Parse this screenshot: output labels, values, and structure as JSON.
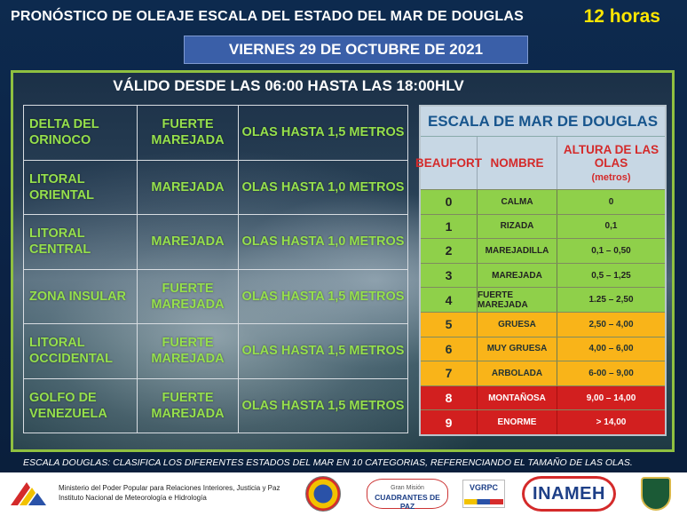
{
  "header": {
    "title": "PRONÓSTICO DE OLEAJE ESCALA DEL ESTADO DEL MAR DE DOUGLAS",
    "hours": "12 horas",
    "date": "VIERNES 29 DE OCTUBRE DE 2021"
  },
  "validity": "VÁLIDO DESDE LAS 06:00 HASTA LAS 18:00HLV",
  "forecast": [
    {
      "zone": "DELTA DEL ORINOCO",
      "condition": "FUERTE MAREJADA",
      "waves": "OLAS HASTA 1,5 METROS"
    },
    {
      "zone": "LITORAL ORIENTAL",
      "condition": "MAREJADA",
      "waves": "OLAS HASTA 1,0 METROS"
    },
    {
      "zone": "LITORAL CENTRAL",
      "condition": "MAREJADA",
      "waves": "OLAS HASTA 1,0 METROS"
    },
    {
      "zone": "ZONA INSULAR",
      "condition": "FUERTE MAREJADA",
      "waves": "OLAS HASTA 1,5 METROS"
    },
    {
      "zone": "LITORAL OCCIDENTAL",
      "condition": "FUERTE MAREJADA",
      "waves": "OLAS HASTA 1,5 METROS"
    },
    {
      "zone": "GOLFO DE VENEZUELA",
      "condition": "FUERTE MAREJADA",
      "waves": "OLAS HASTA 1,5 METROS"
    }
  ],
  "douglas_scale": {
    "title": "ESCALA DE MAR DE DOUGLAS",
    "headers": {
      "beaufort": "BEAUFORT",
      "name": "NOMBRE",
      "height": "ALTURA DE LAS OLAS",
      "unit": "(metros)"
    },
    "rows": [
      {
        "b": "0",
        "name": "CALMA",
        "h": "0",
        "level": "green"
      },
      {
        "b": "1",
        "name": "RIZADA",
        "h": "0,1",
        "level": "green"
      },
      {
        "b": "2",
        "name": "MAREJADILLA",
        "h": "0,1 – 0,50",
        "level": "green"
      },
      {
        "b": "3",
        "name": "MAREJADA",
        "h": "0,5 – 1,25",
        "level": "green"
      },
      {
        "b": "4",
        "name": "FUERTE MAREJADA",
        "h": "1.25 – 2,50",
        "level": "green"
      },
      {
        "b": "5",
        "name": "GRUESA",
        "h": "2,50 – 4,00",
        "level": "orange"
      },
      {
        "b": "6",
        "name": "MUY GRUESA",
        "h": "4,00 – 6,00",
        "level": "orange"
      },
      {
        "b": "7",
        "name": "ARBOLADA",
        "h": "6-00 – 9,00",
        "level": "orange"
      },
      {
        "b": "8",
        "name": "MONTAÑOSA",
        "h": "9,00 – 14,00",
        "level": "red"
      },
      {
        "b": "9",
        "name": "ENORME",
        "h": "> 14,00",
        "level": "red"
      }
    ]
  },
  "footnote": "ESCALA DOUGLAS:  CLASIFICA LOS DIFERENTES ESTADOS DEL MAR EN 10 CATEGORIAS, REFERENCIANDO EL TAMAÑO DE LAS OLAS.",
  "footer": {
    "ministry_line1": "Ministerio del Poder Popular para Relaciones Interiores, Justicia y Paz",
    "ministry_line2": "Instituto  Nacional de Meteorología e Hidrología",
    "gmcp_top": "Gran Misión",
    "gmcp_main": "CUADRANTES DE PAZ",
    "vgrpc": "VGRPC",
    "inameh": "INAMEH"
  },
  "colors": {
    "green": "#8fd04a",
    "orange": "#f9b419",
    "red": "#d21f1f",
    "forecast_text": "#96e04c",
    "hours_text": "#ffe600",
    "frame_border": "#8fc040"
  }
}
